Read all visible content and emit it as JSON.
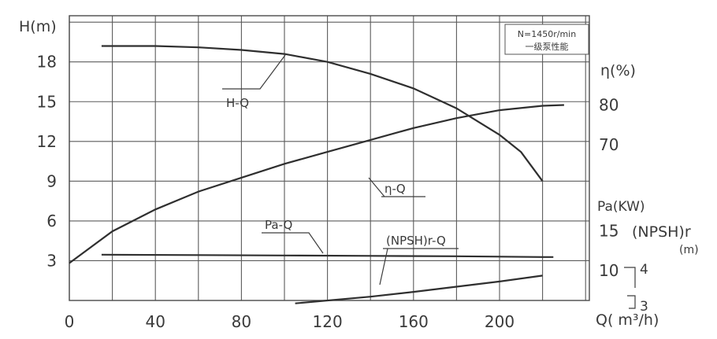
{
  "chart_data": {
    "type": "line",
    "title": "",
    "note_lines": [
      "N=1450r/min",
      "一级泵性能"
    ],
    "xlabel": "Q( m³/h)",
    "xlim": [
      0,
      240
    ],
    "x_ticks": [
      0,
      40,
      80,
      120,
      160,
      200
    ],
    "grid": true,
    "axes": {
      "H": {
        "label": "H(m)",
        "side": "left",
        "range": [
          0,
          21
        ],
        "ticks": [
          3,
          6,
          9,
          12,
          15,
          18
        ]
      },
      "eta": {
        "label": "η(%)",
        "side": "right",
        "ticks": [
          70,
          80
        ]
      },
      "Pa": {
        "label": "Pa(KW)",
        "side": "right",
        "ticks": [
          10,
          15
        ]
      },
      "NPSHr": {
        "label": "(NPSH)r",
        "unit": "(m)",
        "side": "right",
        "ticks": [
          3,
          4
        ]
      }
    },
    "series": [
      {
        "name": "H-Q",
        "axis": "H",
        "x": [
          15,
          40,
          60,
          80,
          100,
          120,
          140,
          160,
          180,
          200,
          210,
          220
        ],
        "y": [
          19.2,
          19.2,
          19.1,
          18.9,
          18.6,
          18.0,
          17.1,
          16.0,
          14.5,
          12.5,
          11.2,
          9.0
        ]
      },
      {
        "name": "η-Q",
        "axis": "eta",
        "x": [
          0,
          20,
          40,
          60,
          80,
          100,
          120,
          140,
          160,
          180,
          200,
          220,
          230
        ],
        "y": [
          40,
          48,
          53.5,
          58,
          61.5,
          65,
          68,
          71,
          74,
          76.5,
          78.5,
          79.6,
          79.8
        ]
      },
      {
        "name": "Pa-Q",
        "axis": "Pa",
        "x": [
          15,
          60,
          100,
          140,
          180,
          220,
          225
        ],
        "y": [
          11.9,
          11.85,
          11.8,
          11.75,
          11.7,
          11.6,
          11.6
        ]
      },
      {
        "name": "(NPSH)r-Q",
        "axis": "NPSHr",
        "x": [
          105,
          140,
          160,
          180,
          200,
          220
        ],
        "y": [
          3.05,
          3.23,
          3.36,
          3.5,
          3.64,
          3.8
        ]
      }
    ]
  }
}
